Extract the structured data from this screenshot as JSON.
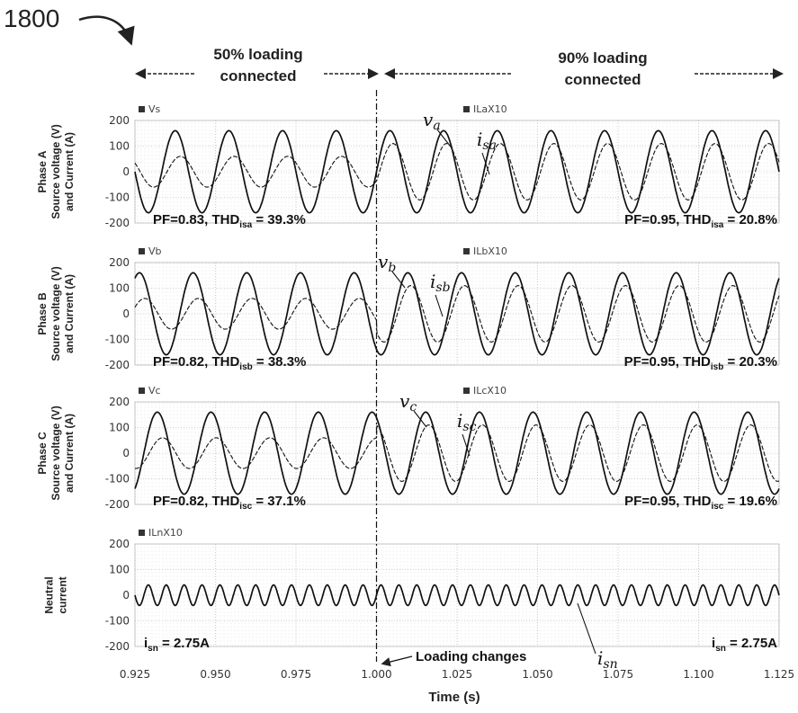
{
  "figure_label": "1800",
  "banners": {
    "left": {
      "line1": "50% loading",
      "line2": "connected"
    },
    "right": {
      "line1": "90% loading",
      "line2": "connected"
    }
  },
  "x_axis": {
    "title": "Time (s)",
    "ticks": [
      "0.925",
      "0.950",
      "0.975",
      "1.000",
      "1.025",
      "1.050",
      "1.075",
      "1.100",
      "1.125"
    ]
  },
  "loading_change_label": "Loading changes",
  "chart_data": [
    {
      "type": "line",
      "panel": "Phase A",
      "ylabel_lines": [
        "Phase A",
        "Source voltage (V)",
        "and Current (A)"
      ],
      "xlim": [
        0.925,
        1.125
      ],
      "ylim": [
        -200,
        200
      ],
      "yticks": [
        200,
        100,
        0,
        -100,
        -200
      ],
      "legend": [
        "Vs",
        "IL×10"
      ],
      "legend_text": {
        "left": "Vs",
        "right": "ILaX10"
      },
      "series": [
        {
          "name": "va",
          "frequency_hz": 60,
          "amplitude": 160,
          "phase_deg": 0
        },
        {
          "name": "isa",
          "segments": [
            {
              "x_range": [
                0.925,
                1.0
              ],
              "amplitude": 60,
              "phase_deg": -35
            },
            {
              "x_range": [
                1.0,
                1.125
              ],
              "amplitude": 110,
              "phase_deg": -20
            }
          ]
        }
      ],
      "symbols": {
        "voltage": "v",
        "voltage_sub": "a",
        "current": "i",
        "current_sub": "sa"
      },
      "annotations": {
        "left": {
          "pf": "PF=0.83, THD",
          "sub": "isa",
          "val": " = 39.3%"
        },
        "right": {
          "pf": "PF=0.95, THD",
          "sub": "isa",
          "val": " = 20.8%"
        }
      }
    },
    {
      "type": "line",
      "panel": "Phase B",
      "ylabel_lines": [
        "Phase B",
        "Source voltage (V)",
        "and Current (A)"
      ],
      "xlim": [
        0.925,
        1.125
      ],
      "ylim": [
        -200,
        200
      ],
      "yticks": [
        200,
        100,
        0,
        -100,
        -200
      ],
      "legend_text": {
        "left": "Vb",
        "right": "ILbX10"
      },
      "series": [
        {
          "name": "vb",
          "frequency_hz": 60,
          "amplitude": 160,
          "phase_deg": -120
        },
        {
          "name": "isb",
          "segments": [
            {
              "x_range": [
                0.925,
                1.0
              ],
              "amplitude": 60,
              "phase_deg": -155
            },
            {
              "x_range": [
                1.0,
                1.125
              ],
              "amplitude": 110,
              "phase_deg": -140
            }
          ]
        }
      ],
      "symbols": {
        "voltage": "v",
        "voltage_sub": "b",
        "current": "i",
        "current_sub": "sb"
      },
      "annotations": {
        "left": {
          "pf": "PF=0.82, THD",
          "sub": "isb",
          "val": " = 38.3%"
        },
        "right": {
          "pf": "PF=0.95, THD",
          "sub": "isb",
          "val": " = 20.3%"
        }
      }
    },
    {
      "type": "line",
      "panel": "Phase C",
      "ylabel_lines": [
        "Phase C",
        "Source voltage (V)",
        "and Current (A)"
      ],
      "xlim": [
        0.925,
        1.125
      ],
      "ylim": [
        -200,
        200
      ],
      "yticks": [
        200,
        100,
        0,
        -100,
        -200
      ],
      "legend_text": {
        "left": "Vc",
        "right": "ILcX10"
      },
      "series": [
        {
          "name": "vc",
          "frequency_hz": 60,
          "amplitude": 160,
          "phase_deg": 120
        },
        {
          "name": "isc",
          "segments": [
            {
              "x_range": [
                0.925,
                1.0
              ],
              "amplitude": 60,
              "phase_deg": 85
            },
            {
              "x_range": [
                1.0,
                1.125
              ],
              "amplitude": 110,
              "phase_deg": 100
            }
          ]
        }
      ],
      "symbols": {
        "voltage": "v",
        "voltage_sub": "c",
        "current": "i",
        "current_sub": "sc"
      },
      "annotations": {
        "left": {
          "pf": "PF=0.82, THD",
          "sub": "isc",
          "val": " = 37.1%"
        },
        "right": {
          "pf": "PF=0.95, THD",
          "sub": "isc",
          "val": " = 19.6%"
        }
      }
    },
    {
      "type": "line",
      "panel": "Neutral current",
      "ylabel_lines": [
        "Neutral",
        "current"
      ],
      "xlim": [
        0.925,
        1.125
      ],
      "ylim": [
        -200,
        200
      ],
      "yticks": [
        200,
        100,
        0,
        -100,
        -200
      ],
      "legend_text": {
        "left": "ILnX10",
        "right": ""
      },
      "series": [
        {
          "name": "isn",
          "frequency_hz": 180,
          "amplitude": 40,
          "phase_deg": 0
        }
      ],
      "symbols": {
        "current": "i",
        "current_sub": "sn"
      },
      "annotations": {
        "left": {
          "pf": "i",
          "sub": "sn",
          "val": " = 2.75A"
        },
        "right": {
          "pf": "i",
          "sub": "sn",
          "val": " = 2.75A"
        }
      }
    }
  ]
}
